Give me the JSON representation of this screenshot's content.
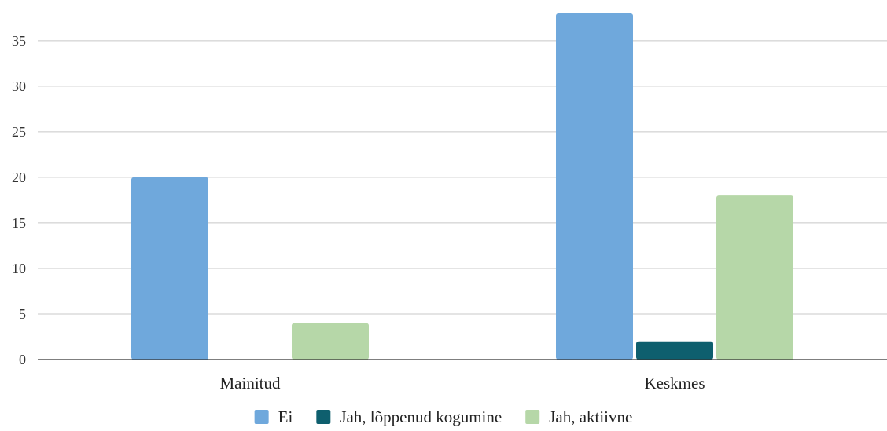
{
  "chart_data": {
    "type": "bar",
    "categories": [
      "Mainitud",
      "Keskmes"
    ],
    "series": [
      {
        "name": "Ei",
        "color": "#6fa8dc",
        "values": [
          20,
          38
        ]
      },
      {
        "name": "Jah, lõppenud kogumine",
        "color": "#0e5f6e",
        "values": [
          0,
          2
        ]
      },
      {
        "name": "Jah, aktiivne",
        "color": "#b6d7a8",
        "values": [
          4,
          18
        ]
      }
    ],
    "yticks": [
      0,
      5,
      10,
      15,
      20,
      25,
      30,
      35
    ],
    "ylim": [
      0,
      38
    ],
    "grid": true,
    "legend_position": "bottom"
  }
}
